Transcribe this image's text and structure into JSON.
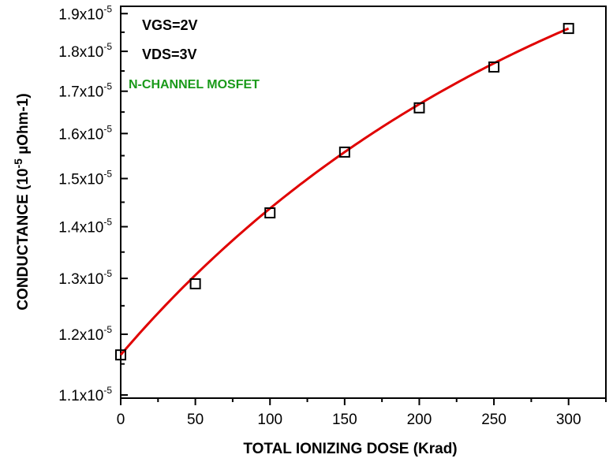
{
  "chart_data": {
    "type": "scatter",
    "x": [
      0,
      50,
      100,
      150,
      200,
      250,
      300
    ],
    "values": [
      11.65,
      12.9,
      14.28,
      15.58,
      16.6,
      17.6,
      18.6
    ],
    "xlim": [
      0,
      325
    ],
    "ylim": [
      10.95,
      19.2
    ],
    "y_scale": "log",
    "xticks": [
      "0",
      "50",
      "100",
      "150",
      "200",
      "250",
      "300"
    ],
    "yticks": [
      {
        "value": 11,
        "mantissa": "1.1x10",
        "exp": "-5"
      },
      {
        "value": 12,
        "mantissa": "1.2x10",
        "exp": "-5"
      },
      {
        "value": 13,
        "mantissa": "1.3x10",
        "exp": "-5"
      },
      {
        "value": 14,
        "mantissa": "1.4x10",
        "exp": "-5"
      },
      {
        "value": 15,
        "mantissa": "1.5x10",
        "exp": "-5"
      },
      {
        "value": 16,
        "mantissa": "1.6x10",
        "exp": "-5"
      },
      {
        "value": 17,
        "mantissa": "1.7x10",
        "exp": "-5"
      },
      {
        "value": 18,
        "mantissa": "1.8x10",
        "exp": "-5"
      },
      {
        "value": 19,
        "mantissa": "1.9x10",
        "exp": "-5"
      }
    ],
    "xlabel": "TOTAL IONIZING DOSE (Krad)",
    "ylabel_pre": "CONDUCTANCE (10",
    "ylabel_exp": "-5",
    "ylabel_post": " µOhm-1)",
    "annotations": [
      "VGS=2V",
      "VDS=3V",
      "N-CHANNEL MOSFET"
    ],
    "marker": "open-square",
    "fit_color": "#e00000",
    "annotation_color": "#1a9a1a"
  }
}
